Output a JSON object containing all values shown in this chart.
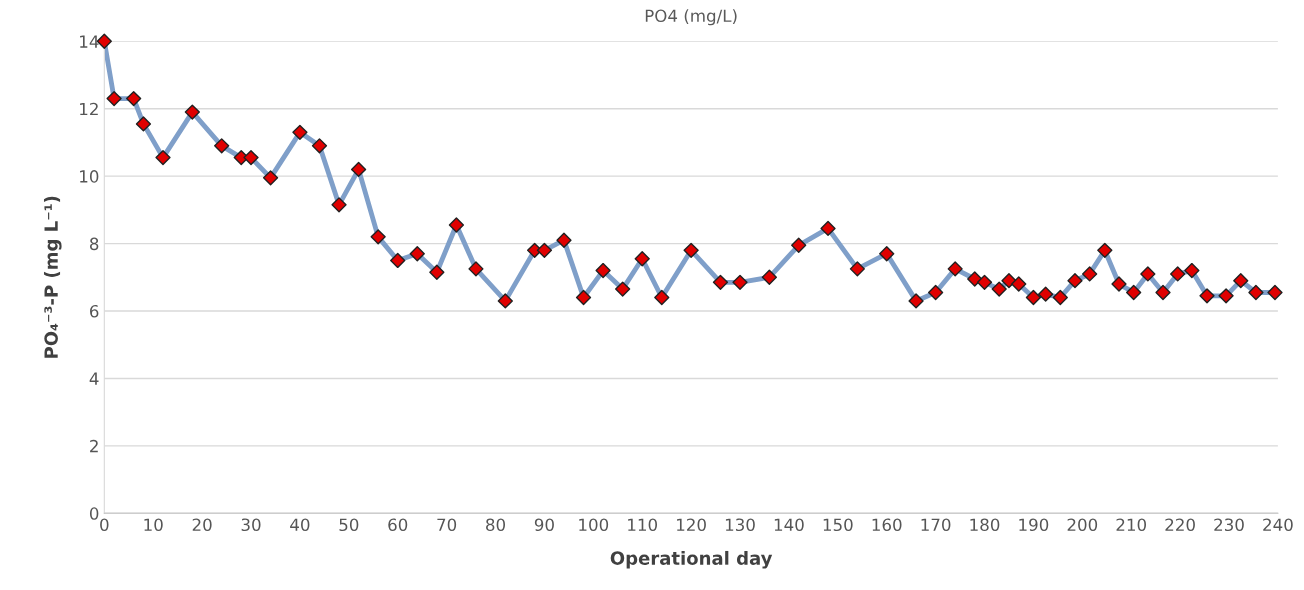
{
  "chart_data": {
    "type": "line",
    "title": "PO4 (mg/L)",
    "xlabel": "Operational day",
    "ylabel": "PO₄⁻³-P (mg L⁻¹)",
    "xlim": [
      0,
      240
    ],
    "xticks": [
      0,
      10,
      20,
      30,
      40,
      50,
      60,
      70,
      80,
      90,
      100,
      110,
      120,
      130,
      140,
      150,
      160,
      170,
      180,
      190,
      200,
      210,
      220,
      230,
      240
    ],
    "ylim": [
      0,
      14
    ],
    "yticks": [
      0,
      2,
      4,
      6,
      8,
      10,
      12,
      14
    ],
    "grid": "y",
    "marker": "diamond",
    "line_style": "solid",
    "series": [
      {
        "color": "#7f9fc9",
        "colors": [
          "#e00000",
          "#e00000",
          "#e00000",
          "#e00000",
          "#e00000",
          "#e00000",
          "#e00000",
          "#e00000",
          "#e00000",
          "#e00000",
          "#e00000",
          "#e00000",
          "#e00000",
          "#e00000",
          "#e00000",
          "#e00000",
          "#e00000",
          "#e00000",
          "#e00000",
          "#e00000",
          "#e00000",
          "#e00000",
          "#e00000",
          "#e00000",
          "#e00000",
          "#e00000",
          "#e00000",
          "#e00000",
          "#e00000",
          "#e00000",
          "#e00000",
          "#e00000",
          "#e00000",
          "#e00000",
          "#e00000",
          "#e00000",
          "#e00000",
          "#e00000",
          "#e00000",
          "#e00000",
          "#e00000",
          "#e00000",
          "#e00000",
          "#e00000",
          "#e00000",
          "#e00000",
          "#e00000",
          "#e00000",
          "#e00000",
          "#e00000",
          "#e00000",
          "#e00000",
          "#e00000",
          "#e00000",
          "#e00000",
          "#e00000",
          "#e00000",
          "#e00000",
          "#e00000",
          "#e00000",
          "#e00000",
          "#e00000"
        ],
        "x": [
          0,
          2,
          6,
          8,
          12,
          18,
          24,
          28,
          30,
          34,
          40,
          44,
          48,
          52,
          56,
          60,
          64,
          68,
          72,
          76,
          82,
          88,
          90,
          94,
          98,
          102,
          106,
          110,
          114,
          120,
          126,
          130,
          136,
          142,
          148,
          154,
          160,
          166,
          170,
          174,
          178,
          180,
          183,
          185,
          187,
          190,
          192.5,
          195.5,
          198.5,
          201.5,
          204.6,
          207.5,
          210.5,
          213.4,
          216.5,
          219.5,
          222.4,
          225.5,
          229.4,
          232.4,
          235.5,
          239.4
        ],
        "values": [
          14.0,
          12.3,
          12.3,
          11.55,
          10.55,
          11.9,
          10.9,
          10.55,
          10.55,
          9.95,
          11.3,
          10.9,
          9.15,
          10.2,
          8.2,
          7.5,
          7.7,
          7.15,
          8.55,
          7.25,
          6.3,
          7.8,
          7.8,
          8.1,
          6.4,
          7.2,
          6.65,
          7.55,
          6.4,
          7.8,
          6.85,
          6.85,
          7.0,
          7.95,
          8.45,
          7.25,
          7.7,
          6.3,
          6.55,
          7.25,
          6.95,
          6.85,
          6.65,
          6.9,
          6.8,
          6.4,
          6.5,
          6.4,
          6.9,
          7.1,
          7.8,
          6.8,
          6.55,
          7.1,
          6.55,
          7.1,
          7.2,
          6.45,
          6.45,
          6.9,
          6.55,
          6.55
        ]
      }
    ]
  }
}
